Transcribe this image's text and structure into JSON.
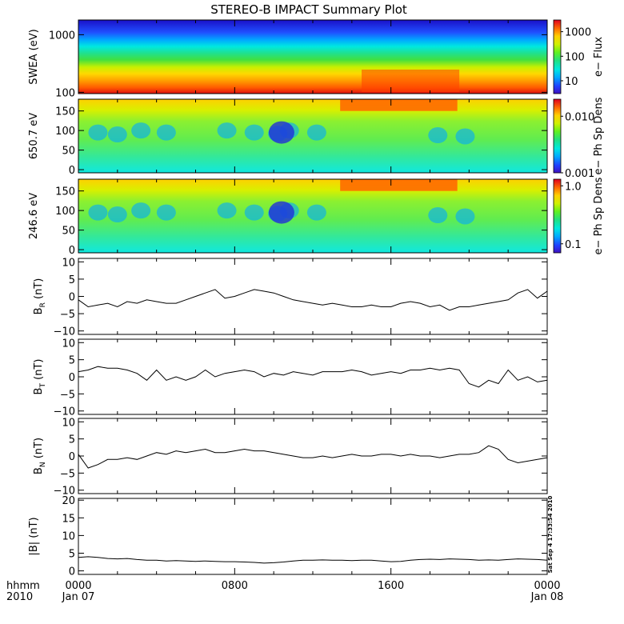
{
  "title": "STEREO-B IMPACT Summary Plot",
  "timestamp": "Sat Sep  4 17:33:54 2010",
  "x_axis": {
    "corner_top": "hhmm",
    "corner_bottom": "2010",
    "ticks": [
      {
        "hours": 0,
        "top": "0000",
        "bottom": "Jan 07"
      },
      {
        "hours": 8,
        "top": "0800",
        "bottom": ""
      },
      {
        "hours": 16,
        "top": "1600",
        "bottom": ""
      },
      {
        "hours": 24,
        "top": "0000",
        "bottom": "Jan 08"
      }
    ],
    "range_hours": [
      0,
      24
    ]
  },
  "chart_data": [
    {
      "type": "heatmap",
      "id": "swea",
      "ylabel": "SWEA (eV)",
      "ylog": true,
      "ylim": [
        95,
        1800
      ],
      "yticks": [
        100,
        1000
      ],
      "ytick_labels": [
        "100",
        "1000"
      ],
      "colorbar": {
        "label": "e− Flux",
        "log": true,
        "range": [
          3,
          3000
        ],
        "ticks": [
          10,
          100,
          1000
        ],
        "tick_labels": [
          "10",
          "100",
          "1000"
        ]
      }
    },
    {
      "type": "heatmap",
      "id": "pad650",
      "ylabel": "650.7 eV",
      "ylim": [
        -8,
        180
      ],
      "yticks": [
        0,
        50,
        100,
        150
      ],
      "ytick_labels": [
        "0",
        "50",
        "100",
        "150"
      ],
      "colorbar": {
        "label": "e− Ph Sp Dens",
        "log": true,
        "range": [
          0.001,
          0.02
        ],
        "ticks": [
          0.001,
          0.01
        ],
        "tick_labels": [
          "0.001",
          "0.010"
        ]
      }
    },
    {
      "type": "heatmap",
      "id": "pad246",
      "ylabel": "246.6 eV",
      "ylim": [
        -8,
        180
      ],
      "yticks": [
        0,
        50,
        100,
        150
      ],
      "ytick_labels": [
        "0",
        "50",
        "100",
        "150"
      ],
      "colorbar": {
        "label": "e− Ph Sp Dens",
        "log": true,
        "range": [
          0.07,
          1.3
        ],
        "ticks": [
          0.1,
          1.0
        ],
        "tick_labels": [
          "0.1",
          "1.0"
        ]
      }
    },
    {
      "type": "line",
      "id": "br",
      "ylabel_main": "B",
      "ylabel_sub": "R",
      "ylabel_unit": " (nT)",
      "ylim": [
        -11,
        11
      ],
      "yticks": [
        -10,
        -5,
        0,
        5,
        10
      ],
      "ytick_labels": [
        "−10",
        "−5",
        "0",
        "5",
        "10"
      ],
      "x": [
        0,
        0.5,
        1,
        1.5,
        2,
        2.5,
        3,
        3.5,
        4,
        4.5,
        5,
        5.5,
        6,
        6.5,
        7,
        7.5,
        8,
        8.5,
        9,
        9.5,
        10,
        10.5,
        11,
        11.5,
        12,
        12.5,
        13,
        13.5,
        14,
        14.5,
        15,
        15.5,
        16,
        16.5,
        17,
        17.5,
        18,
        18.5,
        19,
        19.5,
        20,
        20.5,
        21,
        21.5,
        22,
        22.5,
        23,
        23.5,
        24
      ],
      "y": [
        -1,
        -3,
        -2.5,
        -2,
        -3,
        -1.5,
        -2,
        -1,
        -1.5,
        -2,
        -2,
        -1,
        0,
        1,
        2,
        -0.5,
        0,
        1,
        2,
        1.5,
        1,
        0,
        -1,
        -1.5,
        -2,
        -2.5,
        -2,
        -2.5,
        -3,
        -3,
        -2.5,
        -3,
        -3,
        -2,
        -1.5,
        -2,
        -3,
        -2.5,
        -4,
        -3,
        -3,
        -2.5,
        -2,
        -1.5,
        -1,
        1,
        2,
        -0.5,
        1.5
      ]
    },
    {
      "type": "line",
      "id": "bt",
      "ylabel_main": "B",
      "ylabel_sub": "T",
      "ylabel_unit": " (nT)",
      "ylim": [
        -11,
        11
      ],
      "yticks": [
        -10,
        -5,
        0,
        5,
        10
      ],
      "ytick_labels": [
        "−10",
        "−5",
        "0",
        "5",
        "10"
      ],
      "x": [
        0,
        0.5,
        1,
        1.5,
        2,
        2.5,
        3,
        3.5,
        4,
        4.5,
        5,
        5.5,
        6,
        6.5,
        7,
        7.5,
        8,
        8.5,
        9,
        9.5,
        10,
        10.5,
        11,
        11.5,
        12,
        12.5,
        13,
        13.5,
        14,
        14.5,
        15,
        15.5,
        16,
        16.5,
        17,
        17.5,
        18,
        18.5,
        19,
        19.5,
        20,
        20.5,
        21,
        21.5,
        22,
        22.5,
        23,
        23.5,
        24
      ],
      "y": [
        1.5,
        2,
        3,
        2.5,
        2.5,
        2,
        1,
        -1,
        2,
        -1,
        0,
        -1,
        0,
        2,
        0,
        1,
        1.5,
        2,
        1.5,
        0,
        1,
        0.5,
        1.5,
        1,
        0.5,
        1.5,
        1.5,
        1.5,
        2,
        1.5,
        0.5,
        1,
        1.5,
        1,
        2,
        2,
        2.5,
        2,
        2.5,
        2,
        -2,
        -3,
        -1,
        -2,
        2,
        -1,
        0,
        -1.5,
        -1
      ]
    },
    {
      "type": "line",
      "id": "bn",
      "ylabel_main": "B",
      "ylabel_sub": "N",
      "ylabel_unit": " (nT)",
      "ylim": [
        -11,
        11
      ],
      "yticks": [
        -10,
        -5,
        0,
        5,
        10
      ],
      "ytick_labels": [
        "−10",
        "−5",
        "0",
        "5",
        "10"
      ],
      "x": [
        0,
        0.5,
        1,
        1.5,
        2,
        2.5,
        3,
        3.5,
        4,
        4.5,
        5,
        5.5,
        6,
        6.5,
        7,
        7.5,
        8,
        8.5,
        9,
        9.5,
        10,
        10.5,
        11,
        11.5,
        12,
        12.5,
        13,
        13.5,
        14,
        14.5,
        15,
        15.5,
        16,
        16.5,
        17,
        17.5,
        18,
        18.5,
        19,
        19.5,
        20,
        20.5,
        21,
        21.5,
        22,
        22.5,
        23,
        23.5,
        24
      ],
      "y": [
        0.5,
        -3.5,
        -2.5,
        -1,
        -1,
        -0.5,
        -1,
        0,
        1,
        0.5,
        1.5,
        1,
        1.5,
        2,
        1,
        1,
        1.5,
        2,
        1.5,
        1.5,
        1,
        0.5,
        0,
        -0.5,
        -0.5,
        0,
        -0.5,
        0,
        0.5,
        0,
        0,
        0.5,
        0.5,
        0,
        0.5,
        0,
        0,
        -0.5,
        0,
        0.5,
        0.5,
        1,
        3,
        2,
        -1,
        -2,
        -1.5,
        -1,
        -0.5
      ]
    },
    {
      "type": "line",
      "id": "bmag",
      "ylabel": "|B| (nT)",
      "ylim": [
        -1,
        20.5
      ],
      "yticks": [
        0,
        5,
        10,
        15,
        20
      ],
      "ytick_labels": [
        "0",
        "5",
        "10",
        "15",
        "20"
      ],
      "x": [
        0,
        0.5,
        1,
        1.5,
        2,
        2.5,
        3,
        3.5,
        4,
        4.5,
        5,
        5.5,
        6,
        6.5,
        7,
        7.5,
        8,
        8.5,
        9,
        9.5,
        10,
        10.5,
        11,
        11.5,
        12,
        12.5,
        13,
        13.5,
        14,
        14.5,
        15,
        15.5,
        16,
        16.5,
        17,
        17.5,
        18,
        18.5,
        19,
        19.5,
        20,
        20.5,
        21,
        21.5,
        22,
        22.5,
        23,
        23.5,
        24
      ],
      "y": [
        3.8,
        4,
        3.8,
        3.5,
        3.4,
        3.5,
        3.2,
        3,
        3,
        2.8,
        2.9,
        2.8,
        2.7,
        2.8,
        2.7,
        2.6,
        2.6,
        2.5,
        2.4,
        2.2,
        2.3,
        2.5,
        2.8,
        3,
        3,
        3.1,
        3,
        3,
        2.9,
        3,
        3,
        2.8,
        2.6,
        2.7,
        3,
        3.2,
        3.3,
        3.2,
        3.4,
        3.3,
        3.2,
        3,
        3.1,
        3,
        3.2,
        3.4,
        3.3,
        3.2,
        3
      ]
    }
  ]
}
